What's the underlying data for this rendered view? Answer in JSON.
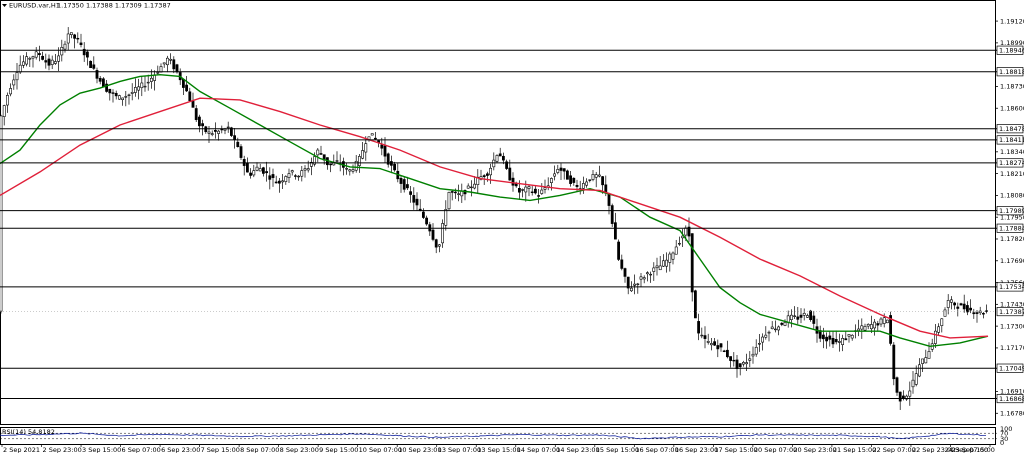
{
  "header": {
    "symbol_text": "EURUSD.var,H1",
    "ohlc_text": "1.17350 1.17388 1.17309 1.17387"
  },
  "colors": {
    "candle": "#000000",
    "sma_fast": "#008000",
    "sma_slow": "#e0203a",
    "hline": "#000000",
    "rsi": "#1a2aa0",
    "label_bg": "#ffffff"
  },
  "chart_data": [
    {
      "type": "candlestick",
      "ylim": [
        1.1674,
        1.1921
      ],
      "y_ticks": [
        "1.19120",
        "1.18990",
        "1.18730",
        "1.18600",
        "1.18340",
        "1.18210",
        "1.18080",
        "1.17950",
        "1.17820",
        "1.17690",
        "1.17560",
        "1.17430",
        "1.17300",
        "1.17170",
        "1.16910",
        "1.16780"
      ],
      "x_tick_labels": [
        "2 Sep 2021",
        "2 Sep 23:00",
        "3 Sep 15:00",
        "6 Sep 07:00",
        "6 Sep 23:00",
        "7 Sep 15:00",
        "8 Sep 07:00",
        "8 Sep 23:00",
        "9 Sep 15:00",
        "10 Sep 07:00",
        "10 Sep 23:00",
        "13 Sep 07:00",
        "13 Sep 15:00",
        "14 Sep 07:00",
        "14 Sep 23:00",
        "15 Sep 15:00",
        "16 Sep 07:00",
        "16 Sep 23:00",
        "17 Sep 15:00",
        "20 Sep 07:00",
        "20 Sep 23:00",
        "21 Sep 15:00",
        "22 Sep 07:00",
        "22 Sep 23:00",
        "23 Sep 15:00",
        "24 Sep 07:00"
      ],
      "horizontal_levels": [
        {
          "value": 1.18946,
          "label": "1.18946"
        },
        {
          "value": 1.18818,
          "label": "1.18818"
        },
        {
          "value": 1.18478,
          "label": "1.18478"
        },
        {
          "value": 1.18411,
          "label": "1.18411"
        },
        {
          "value": 1.18274,
          "label": "1.18274"
        },
        {
          "value": 1.17989,
          "label": "1.17989"
        },
        {
          "value": 1.17884,
          "label": "1.17884"
        },
        {
          "value": 1.17534,
          "label": "1.17534"
        },
        {
          "value": 1.17049,
          "label": "1.17049"
        },
        {
          "value": 1.16868,
          "label": "1.16868"
        }
      ],
      "current_price": {
        "value": 1.17387,
        "label": "1.17387"
      },
      "price_path": [
        [
          0,
          1.185
        ],
        [
          10,
          1.187
        ],
        [
          20,
          1.1885
        ],
        [
          30,
          1.189
        ],
        [
          40,
          1.1893
        ],
        [
          50,
          1.1886
        ],
        [
          60,
          1.189
        ],
        [
          70,
          1.1905
        ],
        [
          80,
          1.19
        ],
        [
          90,
          1.1888
        ],
        [
          100,
          1.1878
        ],
        [
          110,
          1.187
        ],
        [
          120,
          1.1866
        ],
        [
          130,
          1.1868
        ],
        [
          140,
          1.1872
        ],
        [
          150,
          1.1876
        ],
        [
          160,
          1.1883
        ],
        [
          170,
          1.189
        ],
        [
          180,
          1.188
        ],
        [
          190,
          1.1868
        ],
        [
          200,
          1.185
        ],
        [
          210,
          1.1845
        ],
        [
          220,
          1.1846
        ],
        [
          230,
          1.1848
        ],
        [
          240,
          1.1835
        ],
        [
          250,
          1.182
        ],
        [
          260,
          1.1825
        ],
        [
          270,
          1.182
        ],
        [
          280,
          1.1815
        ],
        [
          290,
          1.1822
        ],
        [
          300,
          1.182
        ],
        [
          310,
          1.1825
        ],
        [
          320,
          1.1835
        ],
        [
          330,
          1.1826
        ],
        [
          340,
          1.1828
        ],
        [
          350,
          1.1822
        ],
        [
          360,
          1.1828
        ],
        [
          370,
          1.1845
        ],
        [
          380,
          1.184
        ],
        [
          390,
          1.1828
        ],
        [
          400,
          1.1818
        ],
        [
          410,
          1.181
        ],
        [
          420,
          1.18
        ],
        [
          430,
          1.179
        ],
        [
          440,
          1.1775
        ],
        [
          450,
          1.181
        ],
        [
          460,
          1.1808
        ],
        [
          470,
          1.1812
        ],
        [
          480,
          1.1818
        ],
        [
          490,
          1.1822
        ],
        [
          500,
          1.1835
        ],
        [
          510,
          1.182
        ],
        [
          520,
          1.181
        ],
        [
          530,
          1.1812
        ],
        [
          540,
          1.1808
        ],
        [
          550,
          1.1815
        ],
        [
          560,
          1.1825
        ],
        [
          570,
          1.1818
        ],
        [
          580,
          1.1812
        ],
        [
          590,
          1.1818
        ],
        [
          600,
          1.182
        ],
        [
          610,
          1.1805
        ],
        [
          620,
          1.177
        ],
        [
          630,
          1.1752
        ],
        [
          640,
          1.1757
        ],
        [
          650,
          1.1762
        ],
        [
          660,
          1.1765
        ],
        [
          670,
          1.177
        ],
        [
          680,
          1.178
        ],
        [
          690,
          1.179
        ],
        [
          695,
          1.174
        ],
        [
          700,
          1.1725
        ],
        [
          710,
          1.172
        ],
        [
          720,
          1.1718
        ],
        [
          730,
          1.1712
        ],
        [
          740,
          1.1705
        ],
        [
          750,
          1.171
        ],
        [
          760,
          1.172
        ],
        [
          770,
          1.1728
        ],
        [
          780,
          1.173
        ],
        [
          790,
          1.1735
        ],
        [
          800,
          1.1735
        ],
        [
          810,
          1.1738
        ],
        [
          820,
          1.1725
        ],
        [
          830,
          1.1722
        ],
        [
          840,
          1.172
        ],
        [
          850,
          1.1724
        ],
        [
          860,
          1.1728
        ],
        [
          870,
          1.173
        ],
        [
          880,
          1.1732
        ],
        [
          890,
          1.1735
        ],
        [
          895,
          1.17
        ],
        [
          900,
          1.1686
        ],
        [
          910,
          1.169
        ],
        [
          920,
          1.1705
        ],
        [
          930,
          1.1715
        ],
        [
          940,
          1.173
        ],
        [
          950,
          1.1745
        ],
        [
          960,
          1.1742
        ],
        [
          970,
          1.174
        ],
        [
          980,
          1.1738
        ],
        [
          988,
          1.1739
        ]
      ],
      "series": [
        {
          "kind": "moving-average",
          "points": [
            [
              0,
              1.1827
            ],
            [
              20,
              1.1835
            ],
            [
              40,
              1.185
            ],
            [
              60,
              1.1862
            ],
            [
              80,
              1.1869
            ],
            [
              100,
              1.1872
            ],
            [
              120,
              1.1876
            ],
            [
              140,
              1.1879
            ],
            [
              160,
              1.188
            ],
            [
              180,
              1.1879
            ],
            [
              200,
              1.187
            ],
            [
              230,
              1.186
            ],
            [
              260,
              1.185
            ],
            [
              290,
              1.184
            ],
            [
              320,
              1.183
            ],
            [
              350,
              1.1825
            ],
            [
              380,
              1.1824
            ],
            [
              410,
              1.1818
            ],
            [
              440,
              1.1812
            ],
            [
              470,
              1.181
            ],
            [
              500,
              1.1807
            ],
            [
              530,
              1.1805
            ],
            [
              560,
              1.1808
            ],
            [
              590,
              1.1812
            ],
            [
              620,
              1.1807
            ],
            [
              650,
              1.1795
            ],
            [
              680,
              1.1787
            ],
            [
              700,
              1.177
            ],
            [
              720,
              1.1753
            ],
            [
              740,
              1.1744
            ],
            [
              760,
              1.1737
            ],
            [
              790,
              1.1732
            ],
            [
              820,
              1.1727
            ],
            [
              850,
              1.1727
            ],
            [
              880,
              1.1727
            ],
            [
              900,
              1.1723
            ],
            [
              930,
              1.1718
            ],
            [
              960,
              1.172
            ],
            [
              988,
              1.1724
            ]
          ]
        },
        {
          "kind": "moving-average",
          "points": [
            [
              0,
              1.1808
            ],
            [
              40,
              1.1822
            ],
            [
              80,
              1.1838
            ],
            [
              120,
              1.185
            ],
            [
              160,
              1.1858
            ],
            [
              200,
              1.1866
            ],
            [
              240,
              1.1865
            ],
            [
              280,
              1.1858
            ],
            [
              320,
              1.185
            ],
            [
              360,
              1.1843
            ],
            [
              400,
              1.1835
            ],
            [
              440,
              1.1825
            ],
            [
              480,
              1.1818
            ],
            [
              520,
              1.1815
            ],
            [
              560,
              1.1812
            ],
            [
              600,
              1.1811
            ],
            [
              640,
              1.1803
            ],
            [
              680,
              1.1795
            ],
            [
              720,
              1.1783
            ],
            [
              760,
              1.177
            ],
            [
              800,
              1.176
            ],
            [
              840,
              1.1748
            ],
            [
              880,
              1.1737
            ],
            [
              920,
              1.1727
            ],
            [
              950,
              1.1723
            ],
            [
              988,
              1.1724
            ]
          ]
        }
      ]
    },
    {
      "type": "line",
      "indicator_label": "RSI(14) 54.8182",
      "ylim": [
        0,
        100
      ],
      "y_ticks": [
        "100",
        "70",
        "30",
        "0"
      ],
      "levels": [
        70,
        30
      ],
      "x": [
        0,
        40,
        80,
        120,
        160,
        200,
        240,
        280,
        320,
        360,
        400,
        440,
        480,
        520,
        560,
        600,
        640,
        680,
        720,
        760,
        800,
        840,
        880,
        900,
        920,
        950,
        988
      ],
      "values": [
        55,
        60,
        70,
        52,
        62,
        55,
        48,
        50,
        58,
        66,
        52,
        40,
        50,
        60,
        55,
        57,
        32,
        42,
        45,
        58,
        55,
        55,
        45,
        30,
        45,
        68,
        55
      ]
    }
  ]
}
